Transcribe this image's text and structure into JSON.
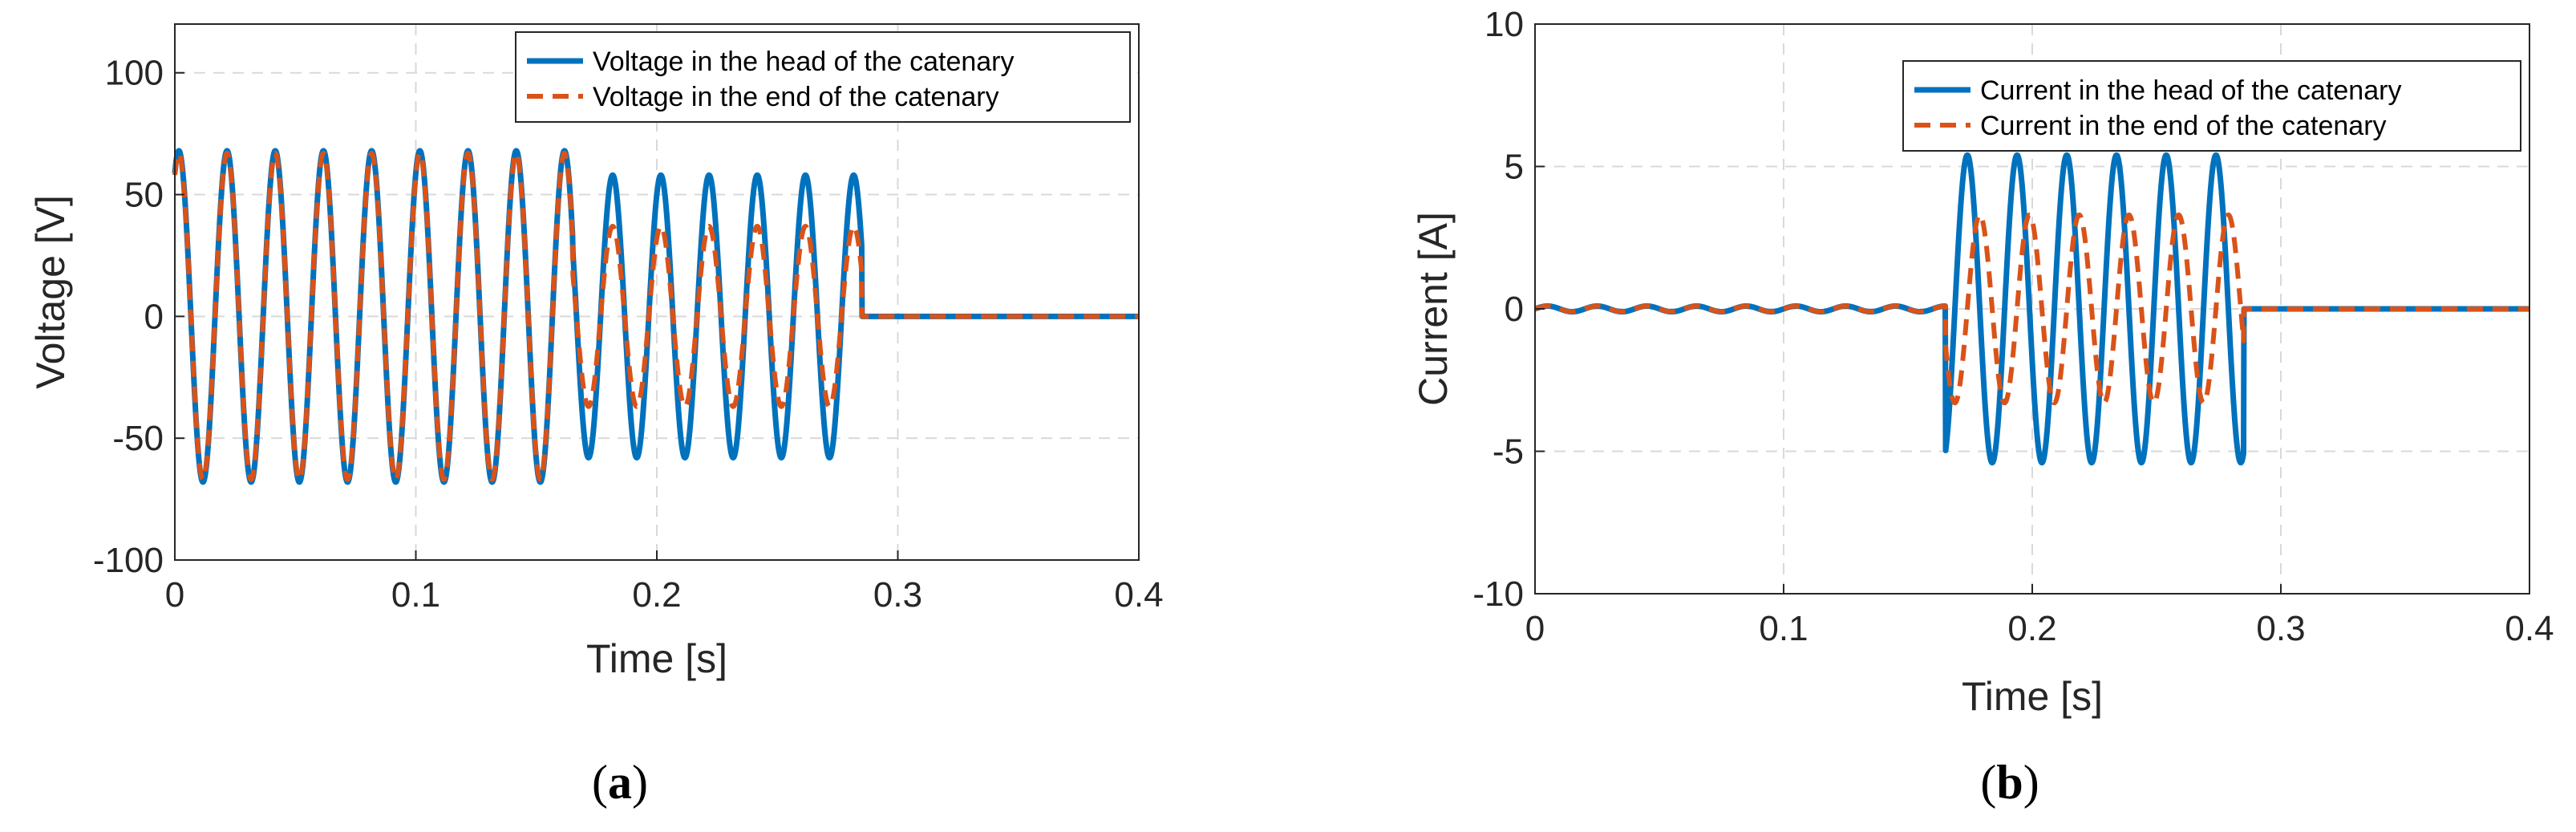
{
  "figure": {
    "panels": [
      {
        "open": "(",
        "letter": "a",
        "close": ")"
      },
      {
        "open": "(",
        "letter": "b",
        "close": ")"
      }
    ]
  },
  "colors": {
    "head": "#0072BD",
    "end": "#D95319",
    "grid": "#d9d9d9",
    "axis": "#262626"
  },
  "chart_data": [
    {
      "type": "line",
      "xlabel": "Time [s]",
      "ylabel": "Voltage  [V]",
      "xlim": [
        0,
        0.4
      ],
      "ylim": [
        -100,
        120
      ],
      "xticks": [
        0,
        0.1,
        0.2,
        0.3,
        0.4
      ],
      "xtick_labels": [
        "0",
        "0.1",
        "0.2",
        "0.3",
        "0.4"
      ],
      "yticks": [
        -100,
        -50,
        0,
        50,
        100
      ],
      "ytick_labels": [
        "-100",
        "-50",
        "0",
        "50",
        "100"
      ],
      "grid": true,
      "legend_position": "top-right",
      "series": [
        {
          "name": "Voltage in the head of the catenary",
          "style": "solid",
          "frequency_hz": 50,
          "segments": [
            {
              "t_start": 0,
              "t_end": 0.165,
              "amplitude": 68,
              "phase_deg": 60
            },
            {
              "t_start": 0.165,
              "t_end": 0.285,
              "amplitude": 58,
              "phase_deg": 60
            },
            {
              "t_start": 0.285,
              "t_end": 0.4,
              "amplitude": 0,
              "phase_deg": 0
            }
          ]
        },
        {
          "name": "Voltage in the end of the catenary",
          "style": "dashed",
          "frequency_hz": 50,
          "segments": [
            {
              "t_start": 0,
              "t_end": 0.165,
              "amplitude": 67,
              "phase_deg": 60
            },
            {
              "t_start": 0.165,
              "t_end": 0.285,
              "amplitude": 37,
              "phase_deg": 60
            },
            {
              "t_start": 0.285,
              "t_end": 0.4,
              "amplitude": 0,
              "phase_deg": 0
            }
          ]
        }
      ]
    },
    {
      "type": "line",
      "xlabel": "Time [s]",
      "ylabel": "Current [A]",
      "xlim": [
        0,
        0.4
      ],
      "ylim": [
        -10,
        10
      ],
      "xticks": [
        0,
        0.1,
        0.2,
        0.3,
        0.4
      ],
      "xtick_labels": [
        "0",
        "0.1",
        "0.2",
        "0.3",
        "0.4"
      ],
      "yticks": [
        -10,
        -5,
        0,
        5,
        10
      ],
      "ytick_labels": [
        "-10",
        "-5",
        "0",
        "5",
        "10"
      ],
      "grid": true,
      "legend_position": "top-right",
      "series": [
        {
          "name": "Current in the head of the catenary",
          "style": "solid",
          "frequency_hz": 50,
          "segments": [
            {
              "t_start": 0,
              "t_end": 0.165,
              "amplitude": 0.1,
              "phase_deg": 0
            },
            {
              "t_start": 0.165,
              "t_end": 0.285,
              "amplitude": 5.4,
              "phase_deg": 200
            },
            {
              "t_start": 0.285,
              "t_end": 0.4,
              "amplitude": 0,
              "phase_deg": 0
            }
          ]
        },
        {
          "name": "Current in the end of the catenary",
          "style": "dashed",
          "frequency_hz": 50,
          "segments": [
            {
              "t_start": 0,
              "t_end": 0.165,
              "amplitude": 0.1,
              "phase_deg": 0
            },
            {
              "t_start": 0.165,
              "t_end": 0.285,
              "amplitude": 3.3,
              "phase_deg": 110
            },
            {
              "t_start": 0.285,
              "t_end": 0.4,
              "amplitude": 0,
              "phase_deg": 0
            }
          ]
        }
      ]
    }
  ]
}
